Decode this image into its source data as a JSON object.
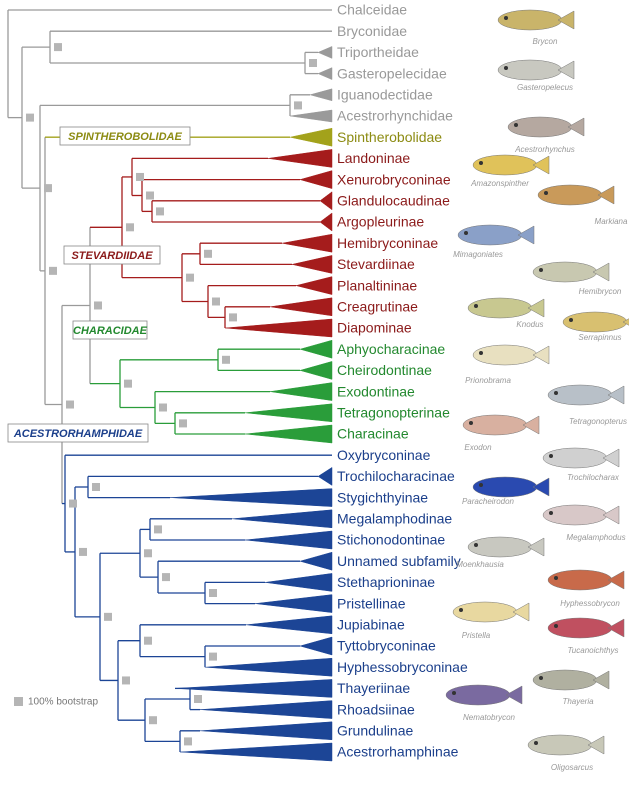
{
  "taxa": [
    "Chalceidae",
    "Bryconidae",
    "Triportheidae",
    "Gasteropelecidae",
    "Iguanodectidae",
    "Acestrorhynchidae",
    "Spintherobolidae",
    "Landoninae",
    "Xenurobryconinae",
    "Glandulocaudinae",
    "Argopleurinae",
    "Hemibryconinae",
    "Stevardiinae",
    "Planaltininae",
    "Creagrutinae",
    "Diapominae",
    "Aphyocharacinae",
    "Cheirodontinae",
    "Exodontinae",
    "Tetragonopterinae",
    "Characinae",
    "Oxybryconinae",
    "Trochilocharacinae",
    "Stygichthyinae",
    "Megalamphodinae",
    "Stichonodontinae",
    "Unnamed subfamily",
    "Stethaprioninae",
    "Pristellinae",
    "Jupiabinae",
    "Tyttobryconinae",
    "Hyphessobryconinae",
    "Thayeriinae",
    "Rhoadsiinae",
    "Grundulinae",
    "Acestrorhamphinae"
  ],
  "families": [
    "SPINTHEROBOLIDAE",
    "STEVARDIIDAE",
    "CHARACIDAE",
    "ACESTRORHAMPHIDAE"
  ],
  "fish_captions": [
    "Brycon",
    "Gasteropelecus",
    "Acestrorhynchus",
    "Amazonspinther",
    "Markiana",
    "Mimagoniates",
    "Hemibrycon",
    "Knodus",
    "Serrapinnus",
    "Prionobrama",
    "Tetragonopterus",
    "Exodon",
    "Trochilocharax",
    "Paracheirodon",
    "Megalamphodus",
    "Moenkhausia",
    "Hyphessobrycon",
    "Pristella",
    "Tucanoichthys",
    "Thayeria",
    "Nematobrycon",
    "Oligosarcus"
  ],
  "legend": "100% bootstrap"
}
